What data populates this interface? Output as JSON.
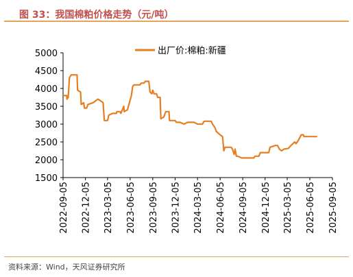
{
  "figure": {
    "title": "图 33：我国棉粕价格走势（元/吨）",
    "source": "资料来源：Wind，天风证券研究所"
  },
  "chart_data": {
    "type": "line",
    "title": "",
    "xlabel": "",
    "ylabel": "",
    "ylim": [
      1500,
      5000
    ],
    "yticks": [
      1500,
      2000,
      2500,
      3000,
      3500,
      4000,
      4500,
      5000
    ],
    "xlim": [
      "2022-09-05",
      "2025-09-05"
    ],
    "xticks": [
      "2022-09-05",
      "2022-12-05",
      "2023-03-05",
      "2023-06-05",
      "2023-09-05",
      "2023-12-05",
      "2024-03-05",
      "2024-06-05",
      "2024-09-05",
      "2024-12-05",
      "2025-03-05",
      "2025-06-05",
      "2025-09-05"
    ],
    "grid": false,
    "legend": "top-center",
    "line_color": "#e67e22",
    "series": [
      {
        "name": "出厂价:棉粕:新疆",
        "points": [
          [
            "2022-09-05",
            3800
          ],
          [
            "2022-09-20",
            3800
          ],
          [
            "2022-09-21",
            3700
          ],
          [
            "2022-09-26",
            3750
          ],
          [
            "2022-10-01",
            4300
          ],
          [
            "2022-10-08",
            4380
          ],
          [
            "2022-11-01",
            4380
          ],
          [
            "2022-11-03",
            3950
          ],
          [
            "2022-11-15",
            3900
          ],
          [
            "2022-11-18",
            3550
          ],
          [
            "2022-11-28",
            3600
          ],
          [
            "2022-12-01",
            3450
          ],
          [
            "2022-12-10",
            3450
          ],
          [
            "2022-12-15",
            3550
          ],
          [
            "2023-01-05",
            3600
          ],
          [
            "2023-01-15",
            3650
          ],
          [
            "2023-01-25",
            3700
          ],
          [
            "2023-02-05",
            3650
          ],
          [
            "2023-02-15",
            3600
          ],
          [
            "2023-02-20",
            3100
          ],
          [
            "2023-03-05",
            3100
          ],
          [
            "2023-03-10",
            3250
          ],
          [
            "2023-03-25",
            3300
          ],
          [
            "2023-04-10",
            3300
          ],
          [
            "2023-04-12",
            3350
          ],
          [
            "2023-04-25",
            3350
          ],
          [
            "2023-04-28",
            3300
          ],
          [
            "2023-05-10",
            3500
          ],
          [
            "2023-05-12",
            3350
          ],
          [
            "2023-05-25",
            3400
          ],
          [
            "2023-06-10",
            3800
          ],
          [
            "2023-06-15",
            4050
          ],
          [
            "2023-06-20",
            4100
          ],
          [
            "2023-07-15",
            4100
          ],
          [
            "2023-07-20",
            4150
          ],
          [
            "2023-08-01",
            4150
          ],
          [
            "2023-08-05",
            4200
          ],
          [
            "2023-08-20",
            4200
          ],
          [
            "2023-08-25",
            3900
          ],
          [
            "2023-09-01",
            3850
          ],
          [
            "2023-09-05",
            3950
          ],
          [
            "2023-09-10",
            3850
          ],
          [
            "2023-09-20",
            3850
          ],
          [
            "2023-09-25",
            3750
          ],
          [
            "2023-10-05",
            3750
          ],
          [
            "2023-10-08",
            3150
          ],
          [
            "2023-10-20",
            3200
          ],
          [
            "2023-10-28",
            3350
          ],
          [
            "2023-11-10",
            3350
          ],
          [
            "2023-11-12",
            3100
          ],
          [
            "2023-12-05",
            3100
          ],
          [
            "2023-12-10",
            3050
          ],
          [
            "2023-12-25",
            3050
          ],
          [
            "2024-01-10",
            3000
          ],
          [
            "2024-01-25",
            3050
          ],
          [
            "2024-02-20",
            3050
          ],
          [
            "2024-03-05",
            3000
          ],
          [
            "2024-03-25",
            3000
          ],
          [
            "2024-04-01",
            3080
          ],
          [
            "2024-04-30",
            3080
          ],
          [
            "2024-05-05",
            3000
          ],
          [
            "2024-05-15",
            2900
          ],
          [
            "2024-05-20",
            2800
          ],
          [
            "2024-06-05",
            2700
          ],
          [
            "2024-06-15",
            2650
          ],
          [
            "2024-06-20",
            2250
          ],
          [
            "2024-06-25",
            2350
          ],
          [
            "2024-07-20",
            2350
          ],
          [
            "2024-07-25",
            2300
          ],
          [
            "2024-08-01",
            2150
          ],
          [
            "2024-08-05",
            2300
          ],
          [
            "2024-08-10",
            2100
          ],
          [
            "2024-08-15",
            2100
          ],
          [
            "2024-09-01",
            2050
          ],
          [
            "2024-10-20",
            2050
          ],
          [
            "2024-10-25",
            2100
          ],
          [
            "2024-11-10",
            2100
          ],
          [
            "2024-11-15",
            2200
          ],
          [
            "2024-12-20",
            2200
          ],
          [
            "2024-12-25",
            2350
          ],
          [
            "2025-01-15",
            2400
          ],
          [
            "2025-01-25",
            2400
          ],
          [
            "2025-02-01",
            2300
          ],
          [
            "2025-02-10",
            2250
          ],
          [
            "2025-02-20",
            2300
          ],
          [
            "2025-03-10",
            2320
          ],
          [
            "2025-03-20",
            2400
          ],
          [
            "2025-04-05",
            2500
          ],
          [
            "2025-04-10",
            2450
          ],
          [
            "2025-04-20",
            2550
          ],
          [
            "2025-05-01",
            2700
          ],
          [
            "2025-05-10",
            2700
          ],
          [
            "2025-05-12",
            2650
          ],
          [
            "2025-06-15",
            2650
          ],
          [
            "2025-07-05",
            2650
          ]
        ]
      }
    ]
  }
}
